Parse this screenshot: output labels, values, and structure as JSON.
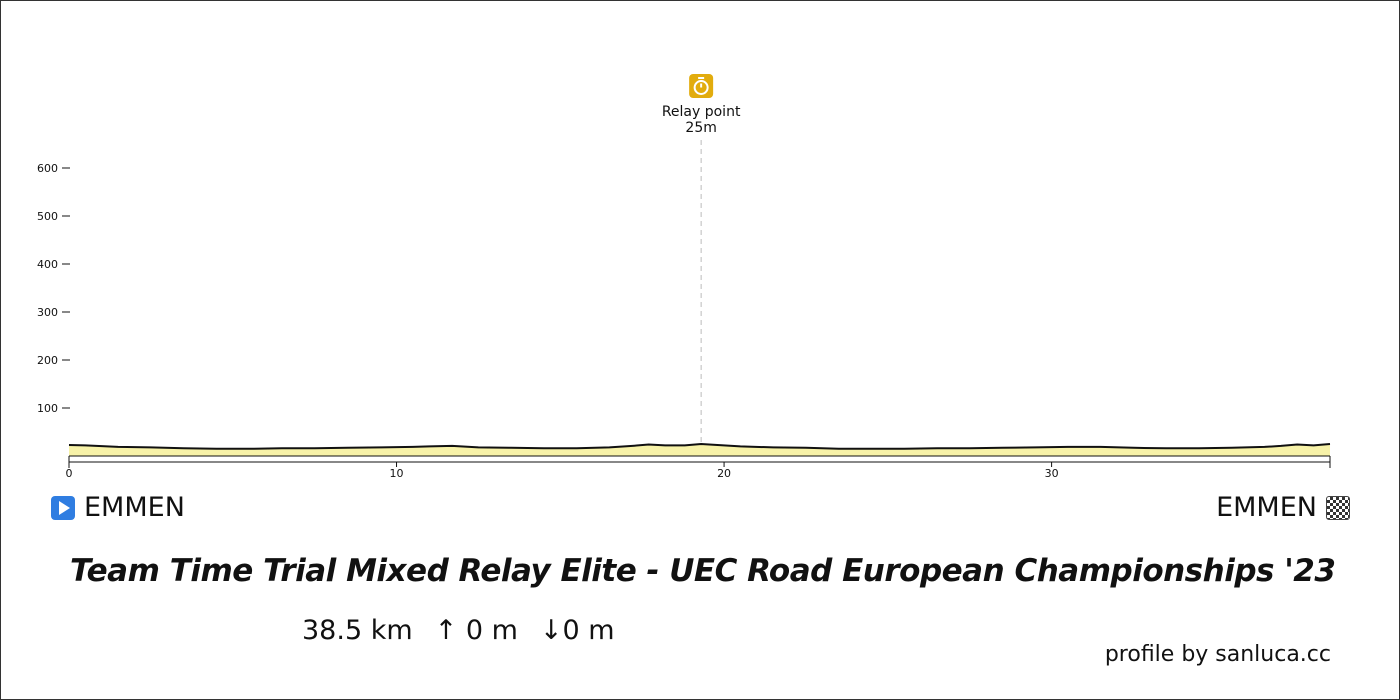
{
  "chart_data": {
    "type": "area",
    "title": "Team Time Trial Mixed Relay Elite - UEC Road European Championships '23",
    "xlabel": "",
    "ylabel": "",
    "xlim": [
      0,
      38.5
    ],
    "ylim": [
      0,
      650
    ],
    "x_ticks": [
      0,
      10,
      20,
      30
    ],
    "y_ticks": [
      100,
      200,
      300,
      400,
      500,
      600
    ],
    "grid": false,
    "series": [
      {
        "x": [
          0,
          0.5,
          1.5,
          2.5,
          3.5,
          4.5,
          5.5,
          6.5,
          7.5,
          8.5,
          9.5,
          10.5,
          11.0,
          11.7,
          12.5,
          13.5,
          14.5,
          15.5,
          16.5,
          17.2,
          17.7,
          18.2,
          18.8,
          19.3,
          19.8,
          20.5,
          21.5,
          22.5,
          23.5,
          24.5,
          25.5,
          26.5,
          27.5,
          28.5,
          29.5,
          30.5,
          31.0,
          31.5,
          32.5,
          33.5,
          34.5,
          35.5,
          36.5,
          37.0,
          37.5,
          38.0,
          38.5
        ],
        "values": [
          23,
          22,
          19,
          18,
          16,
          15,
          15,
          16,
          16,
          17,
          18,
          19,
          20,
          21,
          18,
          17,
          16,
          16,
          18,
          21,
          24,
          22,
          22,
          25,
          23,
          20,
          18,
          17,
          15,
          15,
          15,
          16,
          16,
          17,
          18,
          19,
          19,
          19,
          17,
          16,
          16,
          17,
          19,
          21,
          24,
          22,
          25
        ]
      }
    ],
    "annotations": [
      {
        "x": 19.3,
        "label": "Relay point",
        "value_label": "25m",
        "icon": "stopwatch-icon"
      }
    ],
    "colors": {
      "fill": "#f7f2a8",
      "line": "#111111",
      "marker": "#e2ac0d"
    }
  },
  "start": {
    "name": "EMMEN",
    "icon": "play-icon"
  },
  "finish": {
    "name": "EMMEN",
    "icon": "checkered-flag-icon"
  },
  "stats": {
    "distance": "38.5 km",
    "ascent": "↑ 0 m",
    "descent": "↓0 m"
  },
  "credit": "profile by sanluca.cc"
}
